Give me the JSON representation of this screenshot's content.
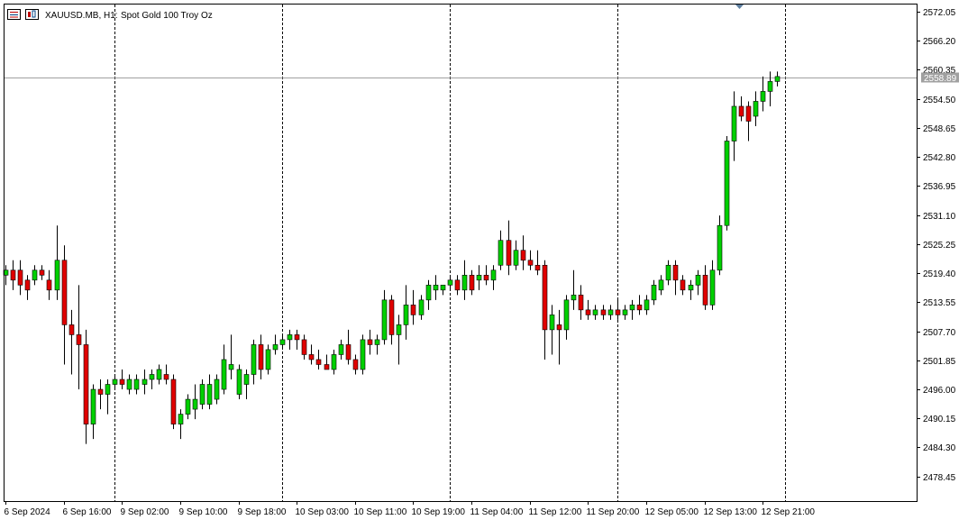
{
  "header": {
    "symbol_label": "XAUUSD.MB, H1:",
    "description": "Spot Gold 100 Troy Oz"
  },
  "current_price_label": "2558.89",
  "colors": {
    "bull": "#00d000",
    "bear": "#e00000",
    "wick": "#000000",
    "grid": "#000000",
    "price_line": "#a0a0a0",
    "price_box": "#a0a0a0",
    "marker": "#6080a0"
  },
  "chart_data": {
    "type": "candlestick",
    "timeframe": "H1",
    "ylim": [
      2473.5,
      2573.5
    ],
    "current_price": 2558.89,
    "y_ticks": [
      "2572.05",
      "2566.20",
      "2560.35",
      "2554.50",
      "2548.65",
      "2542.80",
      "2536.95",
      "2531.10",
      "2525.25",
      "2519.40",
      "2513.55",
      "2507.70",
      "2501.85",
      "2496.00",
      "2490.15",
      "2484.30",
      "2478.45"
    ],
    "x_tick_labels": [
      "6 Sep 2024",
      "6 Sep 16:00",
      "9 Sep 02:00",
      "9 Sep 10:00",
      "9 Sep 18:00",
      "10 Sep 03:00",
      "10 Sep 11:00",
      "10 Sep 19:00",
      "11 Sep 04:00",
      "11 Sep 12:00",
      "11 Sep 20:00",
      "12 Sep 05:00",
      "12 Sep 13:00",
      "12 Sep 21:00"
    ],
    "x_tick_index": [
      0,
      8,
      16,
      24,
      32,
      40,
      48,
      56,
      64,
      72,
      80,
      88,
      96,
      104
    ],
    "separator_index": [
      15,
      38,
      61,
      84,
      107
    ],
    "candles": [
      {
        "o": 2519,
        "h": 2521,
        "l": 2517,
        "c": 2520
      },
      {
        "o": 2520,
        "h": 2522,
        "l": 2516,
        "c": 2518
      },
      {
        "o": 2520,
        "h": 2522,
        "l": 2515,
        "c": 2517
      },
      {
        "o": 2518,
        "h": 2519,
        "l": 2514,
        "c": 2516
      },
      {
        "o": 2518,
        "h": 2521,
        "l": 2517,
        "c": 2520
      },
      {
        "o": 2520,
        "h": 2521,
        "l": 2518,
        "c": 2519
      },
      {
        "o": 2518,
        "h": 2520,
        "l": 2514,
        "c": 2516
      },
      {
        "o": 2516,
        "h": 2529,
        "l": 2514,
        "c": 2522
      },
      {
        "o": 2522,
        "h": 2525,
        "l": 2501,
        "c": 2509
      },
      {
        "o": 2509,
        "h": 2512,
        "l": 2499,
        "c": 2507
      },
      {
        "o": 2507,
        "h": 2517,
        "l": 2496,
        "c": 2505
      },
      {
        "o": 2505,
        "h": 2508,
        "l": 2485,
        "c": 2489
      },
      {
        "o": 2489,
        "h": 2497,
        "l": 2486,
        "c": 2496
      },
      {
        "o": 2496,
        "h": 2498,
        "l": 2492,
        "c": 2495
      },
      {
        "o": 2495,
        "h": 2498,
        "l": 2491,
        "c": 2497
      },
      {
        "o": 2497,
        "h": 2499,
        "l": 2496,
        "c": 2498
      },
      {
        "o": 2498,
        "h": 2500,
        "l": 2496,
        "c": 2497
      },
      {
        "o": 2496,
        "h": 2499,
        "l": 2495,
        "c": 2498
      },
      {
        "o": 2496,
        "h": 2499,
        "l": 2495,
        "c": 2498
      },
      {
        "o": 2497,
        "h": 2500,
        "l": 2495,
        "c": 2498
      },
      {
        "o": 2498,
        "h": 2500,
        "l": 2496,
        "c": 2499
      },
      {
        "o": 2498,
        "h": 2501,
        "l": 2497,
        "c": 2500
      },
      {
        "o": 2499,
        "h": 2501,
        "l": 2497,
        "c": 2498
      },
      {
        "o": 2498,
        "h": 2499,
        "l": 2488,
        "c": 2489
      },
      {
        "o": 2489,
        "h": 2492,
        "l": 2486,
        "c": 2491
      },
      {
        "o": 2491,
        "h": 2495,
        "l": 2490,
        "c": 2494
      },
      {
        "o": 2492,
        "h": 2497,
        "l": 2490,
        "c": 2494
      },
      {
        "o": 2493,
        "h": 2498,
        "l": 2492,
        "c": 2497
      },
      {
        "o": 2493,
        "h": 2499,
        "l": 2492,
        "c": 2497
      },
      {
        "o": 2494,
        "h": 2499,
        "l": 2493,
        "c": 2498
      },
      {
        "o": 2496,
        "h": 2505,
        "l": 2495,
        "c": 2502
      },
      {
        "o": 2500,
        "h": 2507,
        "l": 2498,
        "c": 2501
      },
      {
        "o": 2495,
        "h": 2501,
        "l": 2494,
        "c": 2500
      },
      {
        "o": 2497,
        "h": 2500,
        "l": 2494,
        "c": 2499
      },
      {
        "o": 2499,
        "h": 2506,
        "l": 2497,
        "c": 2505
      },
      {
        "o": 2505,
        "h": 2507,
        "l": 2498,
        "c": 2500
      },
      {
        "o": 2500,
        "h": 2505,
        "l": 2499,
        "c": 2504
      },
      {
        "o": 2504,
        "h": 2507,
        "l": 2503,
        "c": 2505
      },
      {
        "o": 2505,
        "h": 2507,
        "l": 2504,
        "c": 2506
      },
      {
        "o": 2506,
        "h": 2508,
        "l": 2504,
        "c": 2507
      },
      {
        "o": 2507,
        "h": 2508,
        "l": 2504,
        "c": 2506
      },
      {
        "o": 2506,
        "h": 2507,
        "l": 2502,
        "c": 2503
      },
      {
        "o": 2503,
        "h": 2505,
        "l": 2501,
        "c": 2502
      },
      {
        "o": 2502,
        "h": 2504,
        "l": 2500,
        "c": 2501
      },
      {
        "o": 2501,
        "h": 2503,
        "l": 2500,
        "c": 2500
      },
      {
        "o": 2500,
        "h": 2504,
        "l": 2499,
        "c": 2503
      },
      {
        "o": 2503,
        "h": 2506,
        "l": 2502,
        "c": 2505
      },
      {
        "o": 2505,
        "h": 2508,
        "l": 2501,
        "c": 2502
      },
      {
        "o": 2502,
        "h": 2503,
        "l": 2499,
        "c": 2500
      },
      {
        "o": 2500,
        "h": 2507,
        "l": 2499,
        "c": 2506
      },
      {
        "o": 2506,
        "h": 2508,
        "l": 2503,
        "c": 2505
      },
      {
        "o": 2505,
        "h": 2507,
        "l": 2503,
        "c": 2506
      },
      {
        "o": 2506,
        "h": 2516,
        "l": 2505,
        "c": 2514
      },
      {
        "o": 2514,
        "h": 2515,
        "l": 2505,
        "c": 2507
      },
      {
        "o": 2507,
        "h": 2511,
        "l": 2501,
        "c": 2509
      },
      {
        "o": 2509,
        "h": 2517,
        "l": 2506,
        "c": 2513
      },
      {
        "o": 2513,
        "h": 2516,
        "l": 2509,
        "c": 2511
      },
      {
        "o": 2511,
        "h": 2515,
        "l": 2510,
        "c": 2514
      },
      {
        "o": 2514,
        "h": 2518,
        "l": 2512,
        "c": 2517
      },
      {
        "o": 2516,
        "h": 2519,
        "l": 2514,
        "c": 2517
      },
      {
        "o": 2516,
        "h": 2517,
        "l": 2515,
        "c": 2517
      },
      {
        "o": 2517,
        "h": 2519,
        "l": 2516,
        "c": 2518
      },
      {
        "o": 2518,
        "h": 2519,
        "l": 2515,
        "c": 2516
      },
      {
        "o": 2516,
        "h": 2522,
        "l": 2514,
        "c": 2519
      },
      {
        "o": 2519,
        "h": 2520,
        "l": 2515,
        "c": 2516
      },
      {
        "o": 2518,
        "h": 2521,
        "l": 2516,
        "c": 2519
      },
      {
        "o": 2519,
        "h": 2521,
        "l": 2517,
        "c": 2518
      },
      {
        "o": 2518,
        "h": 2521,
        "l": 2516,
        "c": 2520
      },
      {
        "o": 2521,
        "h": 2528,
        "l": 2520,
        "c": 2526
      },
      {
        "o": 2526,
        "h": 2530,
        "l": 2519,
        "c": 2521
      },
      {
        "o": 2521,
        "h": 2526,
        "l": 2520,
        "c": 2524
      },
      {
        "o": 2524,
        "h": 2527,
        "l": 2520,
        "c": 2522
      },
      {
        "o": 2522,
        "h": 2524,
        "l": 2520,
        "c": 2521
      },
      {
        "o": 2521,
        "h": 2524,
        "l": 2519,
        "c": 2520
      },
      {
        "o": 2521,
        "h": 2522,
        "l": 2502,
        "c": 2508
      },
      {
        "o": 2508,
        "h": 2513,
        "l": 2503,
        "c": 2511
      },
      {
        "o": 2509,
        "h": 2512,
        "l": 2501,
        "c": 2508
      },
      {
        "o": 2508,
        "h": 2515,
        "l": 2506,
        "c": 2514
      },
      {
        "o": 2514,
        "h": 2520,
        "l": 2512,
        "c": 2515
      },
      {
        "o": 2515,
        "h": 2517,
        "l": 2510,
        "c": 2512
      },
      {
        "o": 2512,
        "h": 2514,
        "l": 2510,
        "c": 2511
      },
      {
        "o": 2511,
        "h": 2513,
        "l": 2510,
        "c": 2512
      },
      {
        "o": 2512,
        "h": 2513,
        "l": 2510,
        "c": 2511
      },
      {
        "o": 2511,
        "h": 2513,
        "l": 2510,
        "c": 2512
      },
      {
        "o": 2512,
        "h": 2514,
        "l": 2510,
        "c": 2511
      },
      {
        "o": 2511,
        "h": 2513,
        "l": 2510,
        "c": 2512
      },
      {
        "o": 2512,
        "h": 2514,
        "l": 2510,
        "c": 2513
      },
      {
        "o": 2513,
        "h": 2515,
        "l": 2511,
        "c": 2512
      },
      {
        "o": 2512,
        "h": 2515,
        "l": 2511,
        "c": 2514
      },
      {
        "o": 2514,
        "h": 2518,
        "l": 2513,
        "c": 2517
      },
      {
        "o": 2516,
        "h": 2519,
        "l": 2515,
        "c": 2518
      },
      {
        "o": 2518,
        "h": 2522,
        "l": 2517,
        "c": 2521
      },
      {
        "o": 2521,
        "h": 2522,
        "l": 2515,
        "c": 2518
      },
      {
        "o": 2518,
        "h": 2519,
        "l": 2515,
        "c": 2516
      },
      {
        "o": 2516,
        "h": 2518,
        "l": 2514,
        "c": 2517
      },
      {
        "o": 2517,
        "h": 2520,
        "l": 2515,
        "c": 2519
      },
      {
        "o": 2519,
        "h": 2521,
        "l": 2512,
        "c": 2513
      },
      {
        "o": 2513,
        "h": 2522,
        "l": 2512,
        "c": 2520
      },
      {
        "o": 2520,
        "h": 2531,
        "l": 2519,
        "c": 2529
      },
      {
        "o": 2529,
        "h": 2547,
        "l": 2528,
        "c": 2546
      },
      {
        "o": 2546,
        "h": 2556,
        "l": 2542,
        "c": 2553
      },
      {
        "o": 2553,
        "h": 2555,
        "l": 2550,
        "c": 2551
      },
      {
        "o": 2553,
        "h": 2554,
        "l": 2546,
        "c": 2550
      },
      {
        "o": 2551,
        "h": 2556,
        "l": 2549,
        "c": 2554
      },
      {
        "o": 2554,
        "h": 2559,
        "l": 2552,
        "c": 2556
      },
      {
        "o": 2556,
        "h": 2560,
        "l": 2553,
        "c": 2558
      },
      {
        "o": 2558,
        "h": 2560,
        "l": 2557,
        "c": 2559
      }
    ]
  }
}
